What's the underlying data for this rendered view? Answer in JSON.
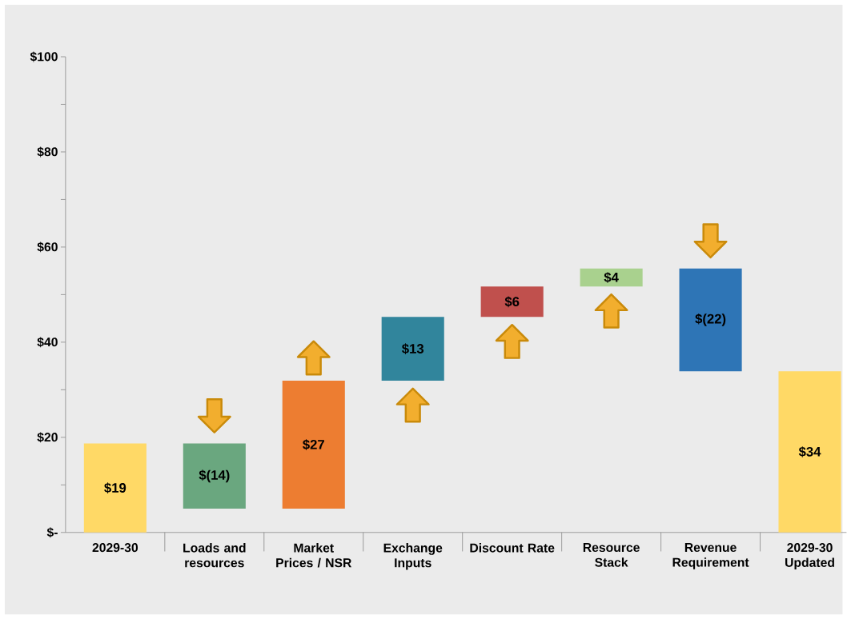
{
  "chart_data": {
    "type": "bar",
    "categories": [
      "2029-30",
      "Loads and resources",
      "Market Prices / NSR",
      "Exchange Inputs",
      "Discount Rate",
      "Resource Stack",
      "Revenue Requirement",
      "2029-30 Updated"
    ],
    "values": [
      18.7,
      -13.7,
      26.9,
      13.4,
      6.4,
      3.8,
      -21.6,
      33.9
    ],
    "base": [
      0,
      18.7,
      5.0,
      31.9,
      45.3,
      51.7,
      55.5,
      0
    ],
    "colors": [
      "#ffd966",
      "#6aa77f",
      "#ed7d31",
      "#31859c",
      "#c0504d",
      "#a9d18e",
      "#2e75b6",
      "#ffd966"
    ],
    "value_labels": [
      "$19",
      "$(14)",
      "$27",
      "$13",
      "$6",
      "$4",
      "$(22)",
      "$34"
    ],
    "ylim": [
      0,
      100
    ],
    "yticks": [
      {
        "value": 0,
        "label": "$-"
      },
      {
        "value": 10,
        "label": null
      },
      {
        "value": 20,
        "label": "$20"
      },
      {
        "value": 30,
        "label": null
      },
      {
        "value": 40,
        "label": "$40"
      },
      {
        "value": 50,
        "label": null
      },
      {
        "value": 60,
        "label": "$60"
      },
      {
        "value": 70,
        "label": null
      },
      {
        "value": 80,
        "label": "$80"
      },
      {
        "value": 90,
        "label": null
      },
      {
        "value": 100,
        "label": "$100"
      }
    ]
  }
}
